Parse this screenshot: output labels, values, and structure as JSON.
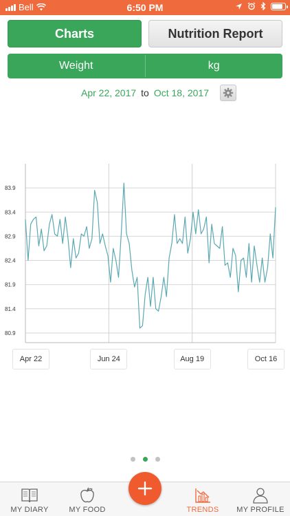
{
  "status_bar": {
    "carrier": "Bell",
    "time": "6:50 PM",
    "battery_level": 0.9
  },
  "tabs": {
    "charts": "Charts",
    "nutrition": "Nutrition Report",
    "active": "charts"
  },
  "segmented": {
    "metric": "Weight",
    "unit": "kg"
  },
  "date_range": {
    "start": "Apr 22, 2017",
    "to": "to",
    "end": "Oct 18, 2017"
  },
  "chart_data": {
    "type": "line",
    "yticks": [
      "83.9",
      "83.4",
      "82.9",
      "82.4",
      "81.9",
      "81.4",
      "80.9"
    ],
    "ylim": [
      80.7,
      84.4
    ],
    "xlabels": [
      "Apr 22",
      "Jun 24",
      "Aug 19",
      "Oct 16"
    ],
    "grid": true,
    "color": "#5aa8b2",
    "series": [
      {
        "values": [
          83.25,
          82.4,
          83.15,
          83.25,
          83.3,
          82.7,
          83.05,
          82.6,
          82.7,
          83.15,
          83.35,
          82.95,
          82.9,
          83.25,
          82.75,
          83.3,
          82.85,
          82.25,
          82.85,
          82.45,
          82.55,
          82.95,
          82.9,
          83.1,
          82.65,
          82.85,
          83.85,
          83.6,
          82.75,
          82.95,
          82.7,
          82.5,
          81.95,
          82.65,
          82.4,
          82.05,
          82.95,
          84.0,
          82.95,
          82.75,
          82.2,
          81.85,
          82.05,
          81.0,
          81.05,
          81.7,
          82.05,
          81.45,
          82.05,
          81.4,
          81.35,
          81.65,
          82.05,
          81.65,
          82.45,
          82.75,
          83.35,
          82.75,
          82.85,
          82.75,
          83.3,
          82.55,
          82.85,
          83.4,
          82.95,
          83.45,
          82.95,
          83.05,
          83.3,
          82.35,
          83.15,
          82.75,
          82.7,
          82.65,
          83.1,
          82.3,
          82.35,
          82.05,
          82.65,
          82.5,
          81.75,
          82.4,
          82.45,
          82.05,
          82.75,
          81.95,
          82.7,
          82.3,
          81.95,
          82.45,
          81.95,
          82.25,
          82.95,
          82.45,
          83.5
        ]
      }
    ]
  },
  "pager": {
    "pages": 3,
    "active": 1
  },
  "tab_bar": {
    "diary": "MY DIARY",
    "food": "MY FOOD",
    "trends": "TRENDS",
    "profile": "MY PROFILE",
    "active": "trends"
  },
  "colors": {
    "accent": "#3aa65a",
    "brand": "#ef6a3c",
    "line": "#5aa8b2"
  }
}
